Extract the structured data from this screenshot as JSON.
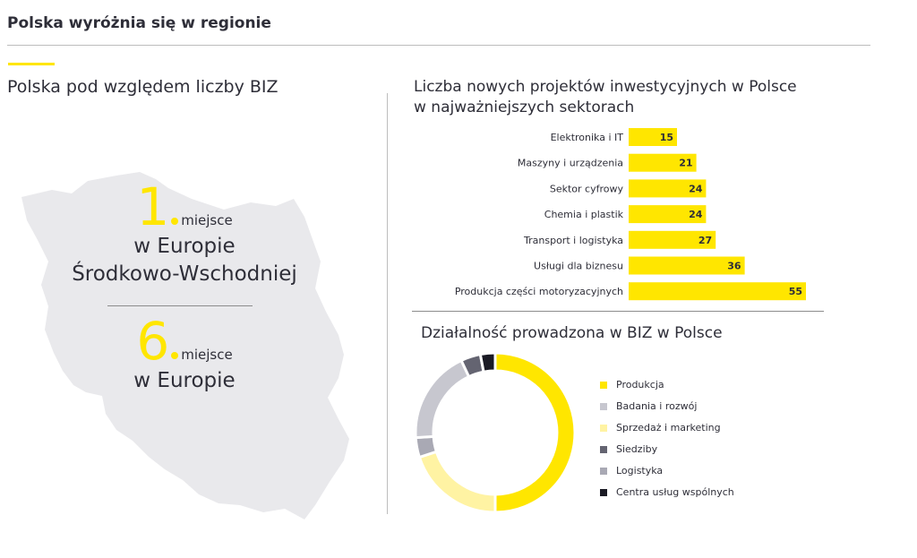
{
  "page_title": "Polska wyróżnia się w regionie",
  "left": {
    "title": "Polska pod względem liczby BIZ",
    "rank1": {
      "number": "1",
      "suffix": "miejsce",
      "line1": "w Europie",
      "line2": "Środkowo-Wschodniej"
    },
    "rank2": {
      "number": "6",
      "suffix": "miejsce",
      "line1": "w Europie"
    }
  },
  "chart_data": [
    {
      "type": "bar",
      "orientation": "horizontal",
      "title_lines": [
        "Liczba nowych projektów inwestycyjnych w Polsce",
        "w najważniejszych sektorach"
      ],
      "categories": [
        "Elektronika i IT",
        "Maszyny i urządzenia",
        "Sektor cyfrowy",
        "Chemia i plastik",
        "Transport i logistyka",
        "Usługi dla biznesu",
        "Produkcja części motoryzacyjnych"
      ],
      "values": [
        15,
        21,
        24,
        24,
        27,
        36,
        55
      ],
      "data_labels": [
        "15",
        "21",
        "24",
        "24",
        "27",
        "36",
        "55"
      ],
      "xlim": [
        0,
        55
      ],
      "bar_color": "#ffe600",
      "grid": false
    },
    {
      "type": "pie",
      "donut": true,
      "title": "Działalność prowadzona w BIZ w Polsce",
      "labels": [
        "Produkcja",
        "Badania i rozwój",
        "Sprzedaż i marketing",
        "Siedziby",
        "Logistyka",
        "Centra usług wspólnych"
      ],
      "values": [
        50,
        19,
        20,
        4,
        4,
        3
      ],
      "colors": [
        "#ffe600",
        "#c7c7cf",
        "#fff3a3",
        "#646471",
        "#a9a9b4",
        "#1a1a24"
      ],
      "slice_order": [
        "Produkcja",
        "Sprzedaż i marketing",
        "Logistyka",
        "Badania i rozwój",
        "Siedziby",
        "Centra usług wspólnych"
      ],
      "legend_position": "right"
    }
  ]
}
